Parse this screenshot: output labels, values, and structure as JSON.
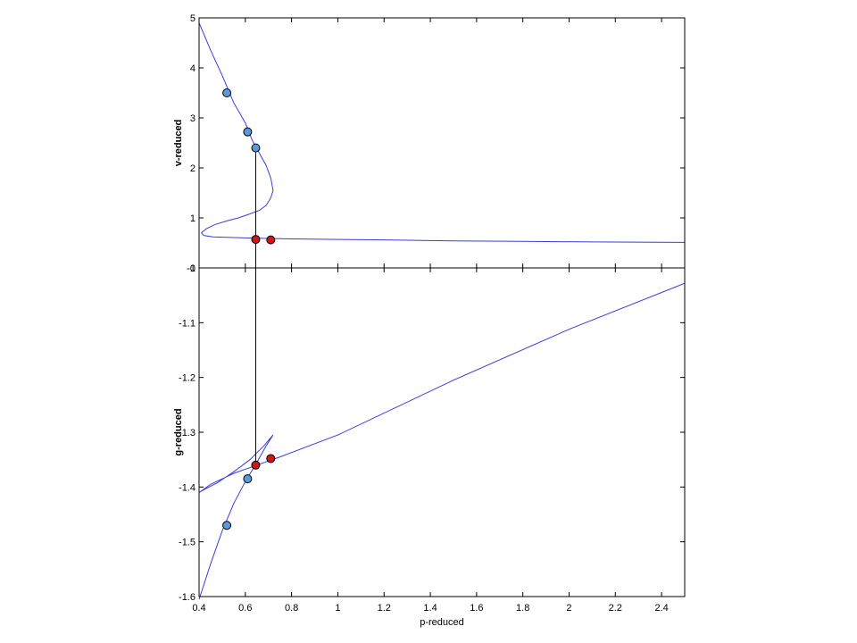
{
  "chart_data": [
    {
      "type": "line",
      "ylabel": "v-reduced",
      "xlim": [
        0.4,
        2.5
      ],
      "ylim": [
        0,
        5
      ],
      "yticks": [
        "-0",
        "1",
        "2",
        "3",
        "4",
        "5"
      ],
      "ytick_values": [
        0,
        1,
        2,
        3,
        4,
        5
      ],
      "grid": false,
      "series": [
        {
          "color": "#3b3bdc",
          "x": [
            0.4,
            0.45,
            0.5,
            0.55,
            0.6,
            0.63,
            0.66,
            0.69,
            0.71,
            0.72,
            0.71,
            0.69,
            0.66,
            0.62,
            0.57,
            0.52,
            0.47,
            0.43,
            0.41,
            0.42,
            0.46,
            0.52,
            0.6,
            0.7,
            0.8,
            1.0,
            1.2,
            1.5,
            1.8,
            2.1,
            2.5
          ],
          "y": [
            4.9,
            4.35,
            3.85,
            3.3,
            2.9,
            2.55,
            2.3,
            2.05,
            1.8,
            1.55,
            1.4,
            1.25,
            1.15,
            1.08,
            1.0,
            0.94,
            0.87,
            0.78,
            0.7,
            0.65,
            0.62,
            0.61,
            0.6,
            0.59,
            0.58,
            0.57,
            0.56,
            0.54,
            0.53,
            0.52,
            0.51
          ]
        }
      ],
      "markers": [
        {
          "x": 0.52,
          "y": 3.5,
          "color": "#5b9bd5"
        },
        {
          "x": 0.61,
          "y": 2.72,
          "color": "#5b9bd5"
        },
        {
          "x": 0.645,
          "y": 2.4,
          "color": "#5b9bd5"
        },
        {
          "x": 0.645,
          "y": 0.57,
          "color": "#d0161a"
        },
        {
          "x": 0.71,
          "y": 0.56,
          "color": "#d0161a"
        }
      ]
    },
    {
      "type": "line",
      "xlabel": "p-reduced",
      "ylabel": "g-reduced",
      "xlim": [
        0.4,
        2.5
      ],
      "ylim": [
        -1.6,
        -1.0
      ],
      "xticks": [
        "0.4",
        "0.6",
        "0.8",
        "1",
        "1.2",
        "1.4",
        "1.6",
        "1.8",
        "2",
        "2.2",
        "2.4"
      ],
      "xtick_values": [
        0.4,
        0.6,
        0.8,
        1.0,
        1.2,
        1.4,
        1.6,
        1.8,
        2.0,
        2.2,
        2.4
      ],
      "yticks": [
        "-1",
        "-1.1",
        "-1.2",
        "-1.3",
        "-1.4",
        "-1.5",
        "-1.6"
      ],
      "ytick_values": [
        -1.0,
        -1.1,
        -1.2,
        -1.3,
        -1.4,
        -1.5,
        -1.6
      ],
      "grid": false,
      "series": [
        {
          "color": "#3b3bdc",
          "x": [
            0.4,
            0.45,
            0.5,
            0.55,
            0.6,
            0.65,
            0.69,
            0.72,
            0.68,
            0.62,
            0.55,
            0.48,
            0.42,
            0.4,
            0.45,
            0.55,
            0.65,
            0.75,
            1.0,
            1.5,
            2.0,
            2.5
          ],
          "y": [
            -1.605,
            -1.54,
            -1.48,
            -1.43,
            -1.39,
            -1.355,
            -1.325,
            -1.305,
            -1.325,
            -1.35,
            -1.372,
            -1.392,
            -1.405,
            -1.41,
            -1.395,
            -1.375,
            -1.36,
            -1.345,
            -1.305,
            -1.205,
            -1.112,
            -1.028
          ]
        }
      ],
      "markers": [
        {
          "x": 0.52,
          "y": -1.47,
          "color": "#5b9bd5"
        },
        {
          "x": 0.61,
          "y": -1.385,
          "color": "#5b9bd5"
        },
        {
          "x": 0.645,
          "y": -1.36,
          "color": "#d0161a"
        },
        {
          "x": 0.71,
          "y": -1.348,
          "color": "#d0161a"
        }
      ]
    }
  ],
  "connector": {
    "x": 0.645,
    "top_y": 2.4,
    "bottom_y": -1.36,
    "color": "#000000"
  }
}
